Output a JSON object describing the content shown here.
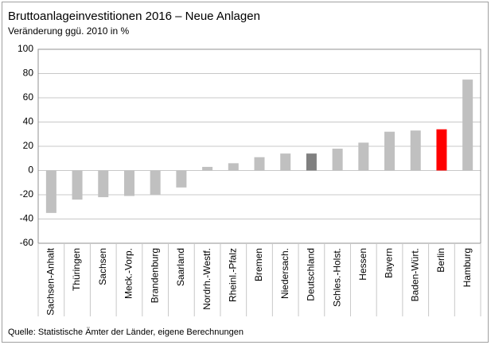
{
  "chart_data": {
    "type": "bar",
    "title": "Bruttoanlageinvestitionen  2016 – Neue Anlagen",
    "subtitle": "Veränderung ggü. 2010 in %",
    "source": "Quelle: Statistische Ämter der Länder,  eigene Berechnungen",
    "categories": [
      "Sachsen-Anhalt",
      "Thüringen",
      "Sachsen",
      "Meck.-Vorp.",
      "Brandenburg",
      "Saarland",
      "Nordrh.-Westf.",
      "Rheinl.-Pfalz",
      "Bremen",
      "Niedersach.",
      "Deutschland",
      "Schles.-Holst.",
      "Hessen",
      "Bayern",
      "Baden-Würt.",
      "Berlin",
      "Hamburg"
    ],
    "values": [
      -35,
      -24,
      -22,
      -21,
      -20,
      -14,
      3,
      6,
      11,
      14,
      14,
      18,
      23,
      32,
      33,
      34,
      75
    ],
    "colors": [
      "#c0c0c0",
      "#c0c0c0",
      "#c0c0c0",
      "#c0c0c0",
      "#c0c0c0",
      "#c0c0c0",
      "#c0c0c0",
      "#c0c0c0",
      "#c0c0c0",
      "#c0c0c0",
      "#808080",
      "#c0c0c0",
      "#c0c0c0",
      "#c0c0c0",
      "#c0c0c0",
      "#ff0000",
      "#c0c0c0"
    ],
    "ylim": [
      -60,
      100
    ],
    "yticks": [
      -60,
      -40,
      -20,
      0,
      20,
      40,
      60,
      80,
      100
    ],
    "grid": true
  }
}
